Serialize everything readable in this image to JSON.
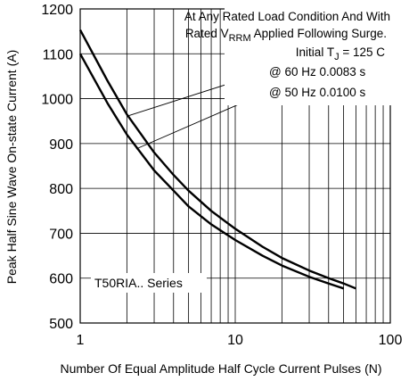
{
  "chart_data": {
    "type": "line",
    "xlabel": "Number Of Equal Amplitude Half Cycle Current Pulses (N)",
    "ylabel": "Peak Half Sine Wave On-state Current (A)",
    "xscale": "log",
    "xlim": [
      1,
      100
    ],
    "ylim": [
      500,
      1200
    ],
    "x_ticks": [
      1,
      10,
      100
    ],
    "x_tick_labels": [
      "1",
      "10",
      "100"
    ],
    "y_ticks": [
      500,
      600,
      700,
      800,
      900,
      1000,
      1100,
      1200
    ],
    "y_tick_labels": [
      "500",
      "600",
      "700",
      "800",
      "900",
      "1000",
      "1100",
      "1200"
    ],
    "grid": true,
    "annotations": {
      "line1": "At Any Rated Load Condition And With",
      "line2_prefix": "Rated V",
      "line2_sub": "RRM",
      "line2_suffix": " Applied Following Surge.",
      "line3_prefix": "Initial T",
      "line3_sub": "J",
      "line3_suffix": " = 125 C",
      "line4": "@ 60 Hz 0.0083 s",
      "line5": "@ 50 Hz 0.0100 s",
      "series_label": "T50RIA.. Series"
    },
    "series": [
      {
        "x": [
          1,
          1.5,
          2,
          3,
          4,
          5,
          7,
          10,
          15,
          20,
          30,
          40,
          50,
          60
        ],
        "y": [
          1153,
          1040,
          965,
          880,
          830,
          795,
          750,
          710,
          670,
          645,
          617,
          600,
          588,
          577
        ]
      },
      {
        "x": [
          1,
          1.5,
          2,
          3,
          4,
          5,
          7,
          10,
          15,
          20,
          30,
          40,
          50
        ],
        "y": [
          1100,
          990,
          920,
          840,
          795,
          760,
          720,
          685,
          650,
          628,
          603,
          588,
          577
        ]
      }
    ],
    "colors": {
      "line": "#000000",
      "grid": "#000000"
    }
  }
}
